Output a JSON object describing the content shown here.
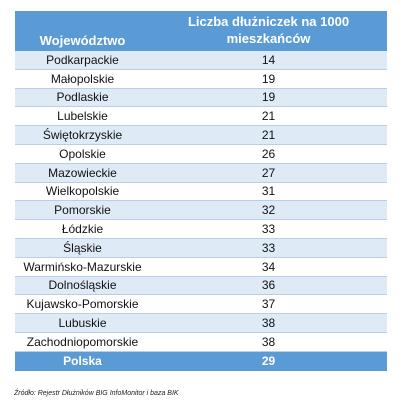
{
  "table": {
    "header": {
      "col1": "Województwo",
      "col2_line1": "Liczba dłużniczek na 1000",
      "col2_line2": "mieszkańców"
    },
    "rows": [
      {
        "region": "Podkarpackie",
        "value": "14"
      },
      {
        "region": "Małopolskie",
        "value": "19"
      },
      {
        "region": "Podlaskie",
        "value": "19"
      },
      {
        "region": "Lubelskie",
        "value": "21"
      },
      {
        "region": "Świętokrzyskie",
        "value": "21"
      },
      {
        "region": "Opolskie",
        "value": "26"
      },
      {
        "region": "Mazowieckie",
        "value": "27"
      },
      {
        "region": "Wielkopolskie",
        "value": "31"
      },
      {
        "region": "Pomorskie",
        "value": "32"
      },
      {
        "region": "Łódzkie",
        "value": "33"
      },
      {
        "region": "Śląskie",
        "value": "33"
      },
      {
        "region": "Warmińsko-Mazurskie",
        "value": "34"
      },
      {
        "region": "Dolnośląskie",
        "value": "36"
      },
      {
        "region": "Kujawsko-Pomorskie",
        "value": "37"
      },
      {
        "region": "Lubuskie",
        "value": "38"
      },
      {
        "region": "Zachodniopomorskie",
        "value": "38"
      }
    ],
    "total": {
      "region": "Polska",
      "value": "29"
    }
  },
  "source": "Źródło: Rejestr Dłużników BIG InfoMonitor i baza BIK",
  "colors": {
    "header_bg": "#5b9bd5",
    "band_bg": "#deeaf6"
  }
}
